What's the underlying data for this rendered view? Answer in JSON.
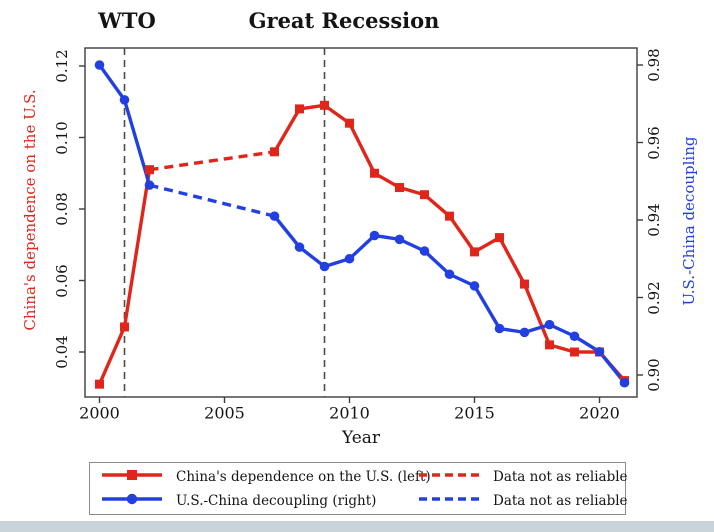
{
  "titles": {
    "wto": "WTO",
    "recession": "Great Recession"
  },
  "axes": {
    "x": {
      "label": "Year",
      "ticks": [
        "2000",
        "2005",
        "2010",
        "2015",
        "2020"
      ]
    },
    "left": {
      "label": "China's dependence on the U.S.",
      "ticks": [
        "0.12",
        "0.10",
        "0.08",
        "0.06",
        "0.04"
      ],
      "color": "#e0261b"
    },
    "right": {
      "label": "U.S.-China decoupling",
      "ticks": [
        "0.98",
        "0.96",
        "0.94",
        "0.92",
        "0.90"
      ],
      "color": "#2240e2"
    }
  },
  "legend": {
    "items": [
      {
        "label": "China's dependence on the U.S. (left)",
        "color": "#e0261b",
        "style": "solid",
        "marker": "square"
      },
      {
        "label": "U.S.-China decoupling (right)",
        "color": "#2240e2",
        "style": "solid",
        "marker": "circle"
      },
      {
        "label": "Data not as reliable",
        "color": "#e0261b",
        "style": "dashed",
        "marker": "none"
      },
      {
        "label": "Data not as reliable",
        "color": "#2240e2",
        "style": "dashed",
        "marker": "none"
      }
    ]
  },
  "chart_data": {
    "type": "line",
    "x": [
      2000,
      2001,
      2002,
      2007,
      2008,
      2009,
      2010,
      2011,
      2012,
      2013,
      2014,
      2015,
      2016,
      2017,
      2018,
      2019,
      2020,
      2021
    ],
    "series": [
      {
        "name": "China's dependence on the U.S. (left)",
        "axis": "left",
        "color": "#e0261b",
        "marker": "square",
        "unreliable_between": [
          2002,
          2007
        ],
        "values": [
          0.031,
          0.047,
          0.091,
          0.096,
          0.108,
          0.109,
          0.104,
          0.09,
          0.086,
          0.084,
          0.078,
          0.068,
          0.072,
          0.059,
          0.042,
          0.04,
          0.04,
          0.032
        ]
      },
      {
        "name": "U.S.-China decoupling (right)",
        "axis": "right",
        "color": "#2240e2",
        "marker": "circle",
        "unreliable_between": [
          2002,
          2007
        ],
        "values": [
          0.98,
          0.971,
          0.949,
          0.941,
          0.933,
          0.928,
          0.93,
          0.936,
          0.935,
          0.932,
          0.926,
          0.923,
          0.912,
          0.911,
          0.913,
          0.91,
          0.906,
          0.898
        ]
      }
    ],
    "annotations": [
      {
        "label": "WTO",
        "year": 2001,
        "style": "dashed-vline"
      },
      {
        "label": "Great Recession",
        "year": 2009,
        "style": "dashed-vline"
      }
    ],
    "xlabel": "Year",
    "x_ticks": [
      2000,
      2005,
      2010,
      2015,
      2020
    ],
    "left_axis": {
      "label": "China's dependence on the U.S.",
      "ticks": [
        0.12,
        0.1,
        0.08,
        0.06,
        0.04
      ]
    },
    "right_axis": {
      "label": "U.S.-China decoupling",
      "ticks": [
        0.98,
        0.96,
        0.94,
        0.92,
        0.9
      ]
    },
    "grid": false,
    "legend_position": "bottom"
  }
}
